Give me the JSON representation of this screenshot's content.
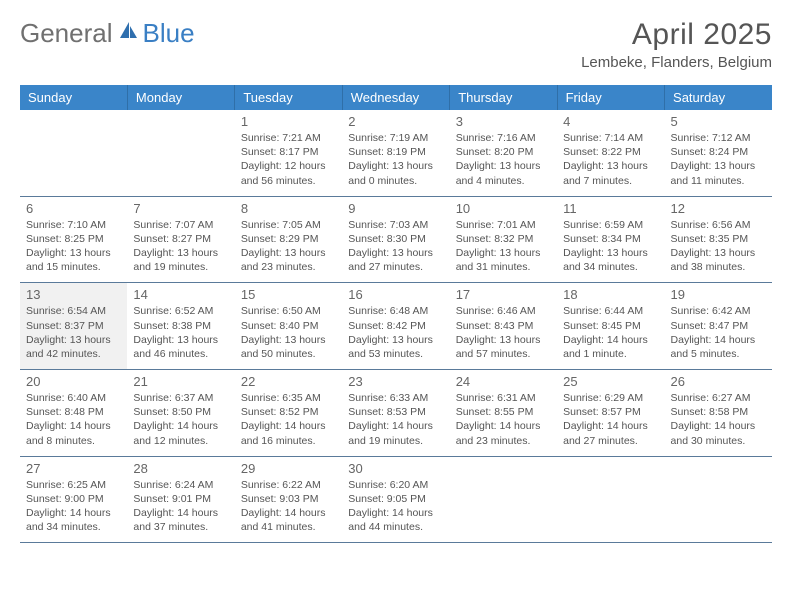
{
  "logo": {
    "first": "General",
    "second": "Blue"
  },
  "title": "April 2025",
  "location": "Lembeke, Flanders, Belgium",
  "colors": {
    "header_bg": "#3a85c9",
    "header_text": "#ffffff",
    "cell_border": "#5a7a9a",
    "shaded_bg": "#f1f1f1",
    "text": "#555555",
    "logo_gray": "#707070",
    "logo_blue": "#3a7fc4"
  },
  "weekdays": [
    "Sunday",
    "Monday",
    "Tuesday",
    "Wednesday",
    "Thursday",
    "Friday",
    "Saturday"
  ],
  "weeks": [
    [
      {
        "day": "",
        "lines": []
      },
      {
        "day": "",
        "lines": []
      },
      {
        "day": "1",
        "lines": [
          "Sunrise: 7:21 AM",
          "Sunset: 8:17 PM",
          "Daylight: 12 hours",
          "and 56 minutes."
        ]
      },
      {
        "day": "2",
        "lines": [
          "Sunrise: 7:19 AM",
          "Sunset: 8:19 PM",
          "Daylight: 13 hours",
          "and 0 minutes."
        ]
      },
      {
        "day": "3",
        "lines": [
          "Sunrise: 7:16 AM",
          "Sunset: 8:20 PM",
          "Daylight: 13 hours",
          "and 4 minutes."
        ]
      },
      {
        "day": "4",
        "lines": [
          "Sunrise: 7:14 AM",
          "Sunset: 8:22 PM",
          "Daylight: 13 hours",
          "and 7 minutes."
        ]
      },
      {
        "day": "5",
        "lines": [
          "Sunrise: 7:12 AM",
          "Sunset: 8:24 PM",
          "Daylight: 13 hours",
          "and 11 minutes."
        ]
      }
    ],
    [
      {
        "day": "6",
        "lines": [
          "Sunrise: 7:10 AM",
          "Sunset: 8:25 PM",
          "Daylight: 13 hours",
          "and 15 minutes."
        ]
      },
      {
        "day": "7",
        "lines": [
          "Sunrise: 7:07 AM",
          "Sunset: 8:27 PM",
          "Daylight: 13 hours",
          "and 19 minutes."
        ]
      },
      {
        "day": "8",
        "lines": [
          "Sunrise: 7:05 AM",
          "Sunset: 8:29 PM",
          "Daylight: 13 hours",
          "and 23 minutes."
        ]
      },
      {
        "day": "9",
        "lines": [
          "Sunrise: 7:03 AM",
          "Sunset: 8:30 PM",
          "Daylight: 13 hours",
          "and 27 minutes."
        ]
      },
      {
        "day": "10",
        "lines": [
          "Sunrise: 7:01 AM",
          "Sunset: 8:32 PM",
          "Daylight: 13 hours",
          "and 31 minutes."
        ]
      },
      {
        "day": "11",
        "lines": [
          "Sunrise: 6:59 AM",
          "Sunset: 8:34 PM",
          "Daylight: 13 hours",
          "and 34 minutes."
        ]
      },
      {
        "day": "12",
        "lines": [
          "Sunrise: 6:56 AM",
          "Sunset: 8:35 PM",
          "Daylight: 13 hours",
          "and 38 minutes."
        ]
      }
    ],
    [
      {
        "day": "13",
        "lines": [
          "Sunrise: 6:54 AM",
          "Sunset: 8:37 PM",
          "Daylight: 13 hours",
          "and 42 minutes."
        ]
      },
      {
        "day": "14",
        "lines": [
          "Sunrise: 6:52 AM",
          "Sunset: 8:38 PM",
          "Daylight: 13 hours",
          "and 46 minutes."
        ]
      },
      {
        "day": "15",
        "lines": [
          "Sunrise: 6:50 AM",
          "Sunset: 8:40 PM",
          "Daylight: 13 hours",
          "and 50 minutes."
        ]
      },
      {
        "day": "16",
        "lines": [
          "Sunrise: 6:48 AM",
          "Sunset: 8:42 PM",
          "Daylight: 13 hours",
          "and 53 minutes."
        ]
      },
      {
        "day": "17",
        "lines": [
          "Sunrise: 6:46 AM",
          "Sunset: 8:43 PM",
          "Daylight: 13 hours",
          "and 57 minutes."
        ]
      },
      {
        "day": "18",
        "lines": [
          "Sunrise: 6:44 AM",
          "Sunset: 8:45 PM",
          "Daylight: 14 hours",
          "and 1 minute."
        ]
      },
      {
        "day": "19",
        "lines": [
          "Sunrise: 6:42 AM",
          "Sunset: 8:47 PM",
          "Daylight: 14 hours",
          "and 5 minutes."
        ]
      }
    ],
    [
      {
        "day": "20",
        "lines": [
          "Sunrise: 6:40 AM",
          "Sunset: 8:48 PM",
          "Daylight: 14 hours",
          "and 8 minutes."
        ]
      },
      {
        "day": "21",
        "lines": [
          "Sunrise: 6:37 AM",
          "Sunset: 8:50 PM",
          "Daylight: 14 hours",
          "and 12 minutes."
        ]
      },
      {
        "day": "22",
        "lines": [
          "Sunrise: 6:35 AM",
          "Sunset: 8:52 PM",
          "Daylight: 14 hours",
          "and 16 minutes."
        ]
      },
      {
        "day": "23",
        "lines": [
          "Sunrise: 6:33 AM",
          "Sunset: 8:53 PM",
          "Daylight: 14 hours",
          "and 19 minutes."
        ]
      },
      {
        "day": "24",
        "lines": [
          "Sunrise: 6:31 AM",
          "Sunset: 8:55 PM",
          "Daylight: 14 hours",
          "and 23 minutes."
        ]
      },
      {
        "day": "25",
        "lines": [
          "Sunrise: 6:29 AM",
          "Sunset: 8:57 PM",
          "Daylight: 14 hours",
          "and 27 minutes."
        ]
      },
      {
        "day": "26",
        "lines": [
          "Sunrise: 6:27 AM",
          "Sunset: 8:58 PM",
          "Daylight: 14 hours",
          "and 30 minutes."
        ]
      }
    ],
    [
      {
        "day": "27",
        "lines": [
          "Sunrise: 6:25 AM",
          "Sunset: 9:00 PM",
          "Daylight: 14 hours",
          "and 34 minutes."
        ]
      },
      {
        "day": "28",
        "lines": [
          "Sunrise: 6:24 AM",
          "Sunset: 9:01 PM",
          "Daylight: 14 hours",
          "and 37 minutes."
        ]
      },
      {
        "day": "29",
        "lines": [
          "Sunrise: 6:22 AM",
          "Sunset: 9:03 PM",
          "Daylight: 14 hours",
          "and 41 minutes."
        ]
      },
      {
        "day": "30",
        "lines": [
          "Sunrise: 6:20 AM",
          "Sunset: 9:05 PM",
          "Daylight: 14 hours",
          "and 44 minutes."
        ]
      },
      {
        "day": "",
        "lines": []
      },
      {
        "day": "",
        "lines": []
      },
      {
        "day": "",
        "lines": []
      }
    ]
  ],
  "shaded_days": [
    "13"
  ]
}
